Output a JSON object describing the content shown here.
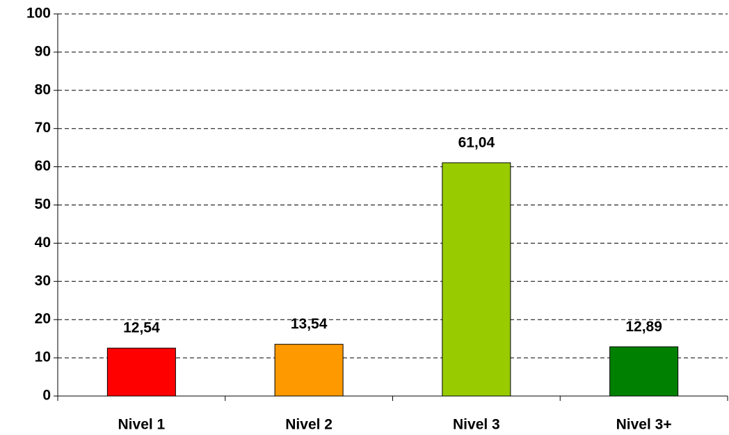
{
  "chart_data": {
    "type": "bar",
    "categories": [
      "Nivel 1",
      "Nivel 2",
      "Nivel 3",
      "Nivel 3+"
    ],
    "values": [
      12.54,
      13.54,
      61.04,
      12.89
    ],
    "value_labels": [
      "12,54",
      "13,54",
      "61,04",
      "12,89"
    ],
    "colors": [
      "#ff0000",
      "#ff9900",
      "#99cc00",
      "#008000"
    ],
    "ylim": [
      0,
      100
    ],
    "yticks": [
      0,
      10,
      20,
      30,
      40,
      50,
      60,
      70,
      80,
      90,
      100
    ],
    "grid": true
  }
}
